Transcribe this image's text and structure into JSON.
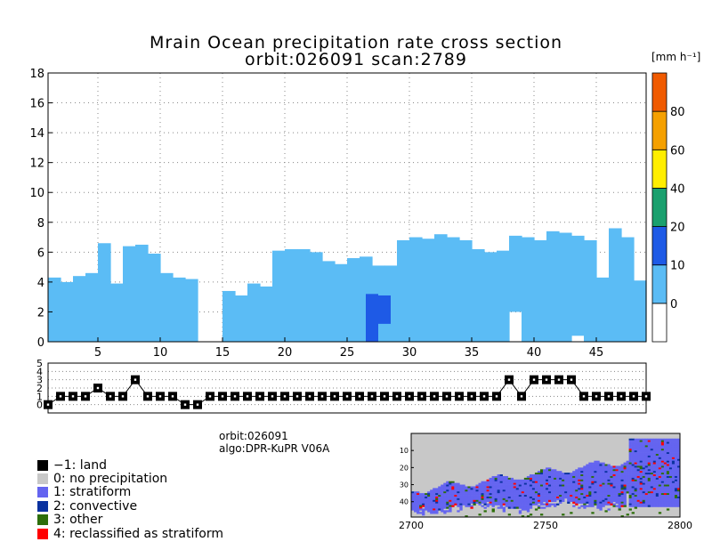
{
  "title": {
    "line1": "Mrain Ocean precipitation rate cross section",
    "line2": "orbit:026091     scan:2789"
  },
  "info": {
    "orbit": "orbit:026091",
    "algo": "algo:DPR-KuPR V06A"
  },
  "chart_data": [
    {
      "type": "heatmap",
      "title": "Mrain Ocean precipitation rate cross section",
      "subtitle": "orbit:026091     scan:2789",
      "xlim": [
        1,
        49
      ],
      "ylim": [
        0,
        18
      ],
      "x_ticks": [
        5,
        10,
        15,
        20,
        25,
        30,
        35,
        40,
        45
      ],
      "y_ticks": [
        0,
        2,
        4,
        6,
        8,
        10,
        12,
        14,
        16,
        18
      ],
      "grid": true,
      "value_units": "[mm h⁻¹]",
      "colorbar": {
        "title": "[mm h⁻¹]",
        "tick_labels": [
          "0",
          "10",
          "20",
          "40",
          "60",
          "80"
        ],
        "bins": [
          {
            "color": "#ffffff"
          },
          {
            "color": "#5bbcf5"
          },
          {
            "color": "#1e5ae6"
          },
          {
            "color": "#1aa06e"
          },
          {
            "color": "#ffee00"
          },
          {
            "color": "#f5a000"
          },
          {
            "color": "#f05a00"
          }
        ]
      },
      "rain_top_km": [
        4.3,
        4.0,
        4.4,
        4.6,
        6.6,
        3.9,
        6.4,
        6.5,
        5.9,
        4.6,
        4.3,
        4.2,
        0,
        0,
        3.4,
        3.1,
        3.9,
        3.7,
        6.1,
        6.2,
        6.2,
        6.0,
        5.4,
        5.2,
        5.6,
        5.7,
        5.1,
        5.1,
        6.8,
        7.0,
        6.9,
        7.2,
        7.0,
        6.8,
        6.2,
        6.0,
        6.1,
        7.1,
        7.0,
        6.8,
        7.4,
        7.3,
        7.1,
        6.8,
        4.3,
        7.6,
        7.0,
        4.1
      ],
      "rain_bottom_km": [
        0,
        0,
        0,
        0,
        0,
        0,
        0,
        0,
        0,
        0,
        0,
        0,
        0,
        0,
        0,
        0,
        0,
        0,
        0,
        0,
        0,
        0,
        0,
        0,
        0,
        0,
        0,
        0,
        0,
        0,
        0,
        0,
        0,
        0,
        0,
        0,
        0,
        2.0,
        0,
        0,
        0,
        0,
        0.4,
        0,
        0,
        0,
        0,
        0
      ],
      "convective_columns": [
        {
          "x": 27,
          "top_km": 3.2,
          "bottom_km": 0,
          "label": "10"
        },
        {
          "x": 28,
          "top_km": 3.1,
          "bottom_km": 1.2,
          "label": "10"
        }
      ]
    },
    {
      "type": "line",
      "title": "",
      "xlim": [
        1,
        49
      ],
      "ylim": [
        -1,
        5
      ],
      "y_ticks": [
        0,
        1,
        2,
        3,
        4,
        5
      ],
      "grid": true,
      "x": [
        1,
        2,
        3,
        4,
        5,
        6,
        7,
        8,
        9,
        10,
        11,
        12,
        13,
        14,
        15,
        16,
        17,
        18,
        19,
        20,
        21,
        22,
        23,
        24,
        25,
        26,
        27,
        28,
        29,
        30,
        31,
        32,
        33,
        34,
        35,
        36,
        37,
        38,
        39,
        40,
        41,
        42,
        43,
        44,
        45,
        46,
        47,
        48,
        49
      ],
      "values": [
        0,
        1,
        1,
        1,
        2,
        1,
        1,
        3,
        1,
        1,
        1,
        0,
        0,
        1,
        1,
        1,
        1,
        1,
        1,
        1,
        1,
        1,
        1,
        1,
        1,
        1,
        1,
        1,
        1,
        1,
        1,
        1,
        1,
        1,
        1,
        1,
        1,
        3,
        1,
        3,
        3,
        3,
        3,
        1,
        1,
        1,
        1,
        1,
        1
      ]
    },
    {
      "type": "heatmap",
      "title": "",
      "xlim": [
        2700,
        2800
      ],
      "x_ticks": [
        2700,
        2750,
        2800
      ],
      "y_ticks": [
        10,
        20,
        30,
        40
      ],
      "legend": [
        {
          "label": "−1: land",
          "color": "#000000"
        },
        {
          "label": "0: no precipitation",
          "color": "#c8c8c8"
        },
        {
          "label": "1: stratiform",
          "color": "#6464f0"
        },
        {
          "label": "2: convective",
          "color": "#0a32a0"
        },
        {
          "label": "3: other",
          "color": "#2d6e0a"
        },
        {
          "label": "4: reclassified as stratiform",
          "color": "#ff0000"
        }
      ]
    }
  ]
}
